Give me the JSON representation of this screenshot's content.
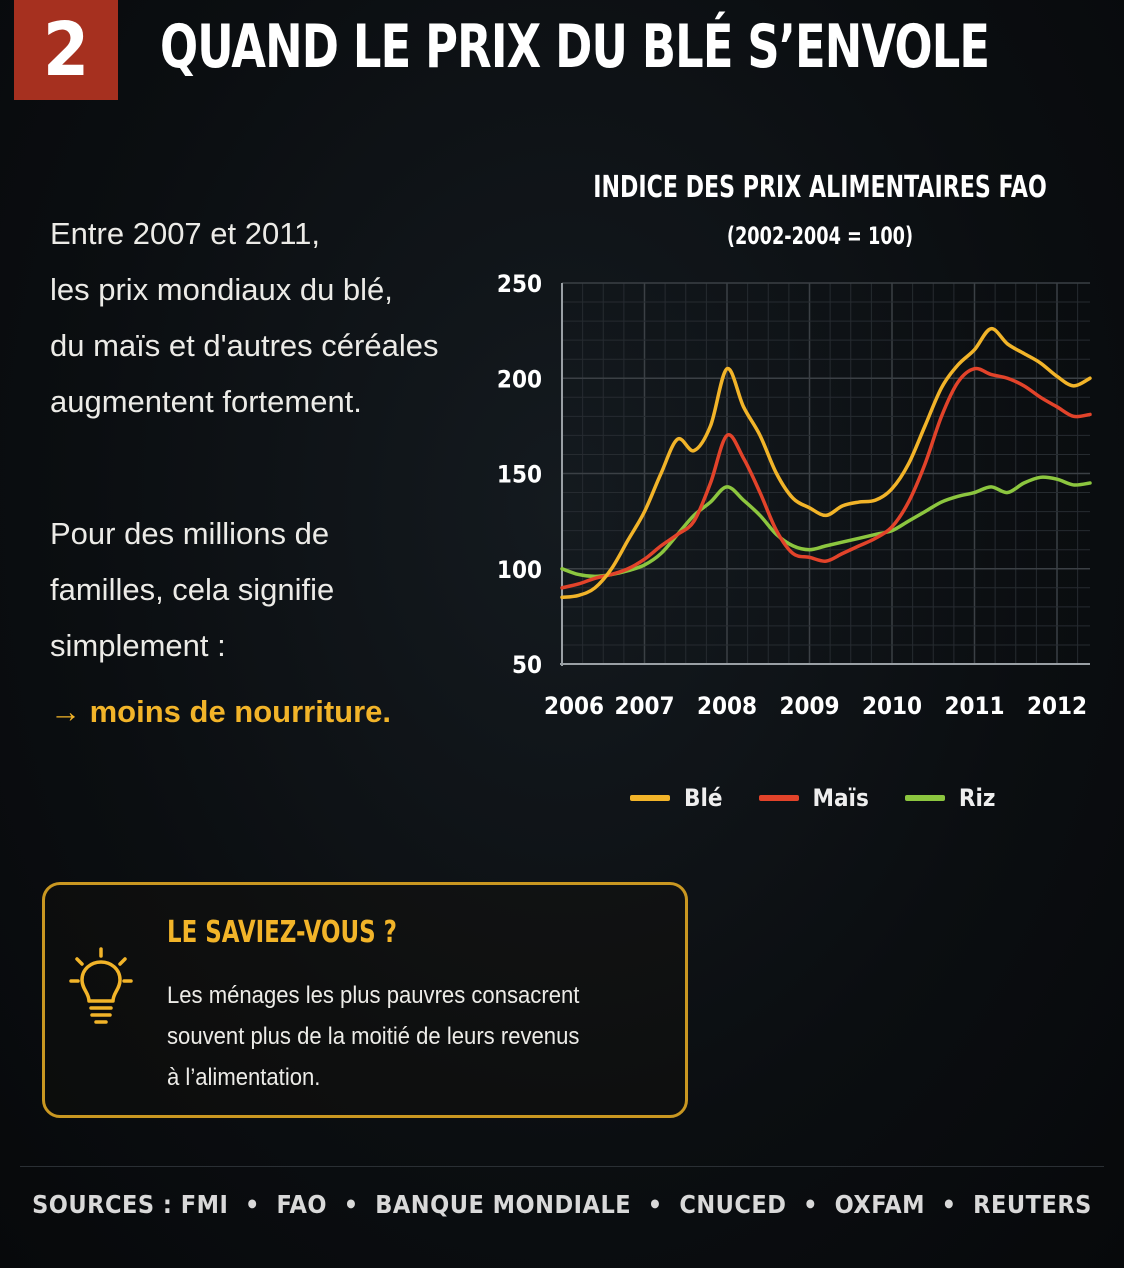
{
  "header": {
    "section_number": "2",
    "title": "QUAND LE PRIX DU BLÉ S’ENVOLE"
  },
  "intro": {
    "lines": [
      "Entre 2007 et 2011,",
      "les prix mondiaux du blé,",
      "du maïs et d'autres céréales",
      "augmentent fortement."
    ]
  },
  "consequence": {
    "lines": [
      "Pour des millions de",
      "familles, cela signifie",
      "simplement :"
    ],
    "highlight": "→ moins de nourriture."
  },
  "chart_data": {
    "type": "line",
    "title": "INDICE DES PRIX ALIMENTAIRES FAO",
    "subtitle": "(2002-2004 = 100)",
    "xlim": [
      2006,
      2012.4
    ],
    "ylim": [
      50,
      250
    ],
    "x_ticks": [
      "2006",
      "2007",
      "2008",
      "2009",
      "2010",
      "2011",
      "2012"
    ],
    "y_ticks": [
      "250",
      "200",
      "150",
      "100",
      "50"
    ],
    "grid": true,
    "legend_position": "bottom",
    "series": [
      {
        "name": "Blé",
        "color": "#f2b429",
        "x": [
          2006.0,
          2006.2,
          2006.4,
          2006.6,
          2006.8,
          2007.0,
          2007.2,
          2007.4,
          2007.6,
          2007.8,
          2008.0,
          2008.2,
          2008.4,
          2008.6,
          2008.8,
          2009.0,
          2009.2,
          2009.4,
          2009.6,
          2009.8,
          2010.0,
          2010.2,
          2010.4,
          2010.6,
          2010.8,
          2011.0,
          2011.2,
          2011.4,
          2011.6,
          2011.8,
          2012.0,
          2012.2,
          2012.4
        ],
        "values": [
          85,
          86,
          90,
          100,
          115,
          130,
          150,
          168,
          162,
          175,
          205,
          185,
          170,
          150,
          137,
          132,
          128,
          133,
          135,
          136,
          142,
          155,
          175,
          195,
          207,
          215,
          226,
          218,
          213,
          208,
          201,
          196,
          200
        ]
      },
      {
        "name": "Maïs",
        "color": "#e2432a",
        "x": [
          2006.0,
          2006.2,
          2006.4,
          2006.6,
          2006.8,
          2007.0,
          2007.2,
          2007.4,
          2007.6,
          2007.8,
          2008.0,
          2008.2,
          2008.4,
          2008.6,
          2008.8,
          2009.0,
          2009.2,
          2009.4,
          2009.6,
          2009.8,
          2010.0,
          2010.2,
          2010.4,
          2010.6,
          2010.8,
          2011.0,
          2011.2,
          2011.4,
          2011.6,
          2011.8,
          2012.0,
          2012.2,
          2012.4
        ],
        "values": [
          90,
          92,
          95,
          97,
          100,
          105,
          112,
          118,
          125,
          145,
          170,
          158,
          140,
          120,
          108,
          106,
          104,
          108,
          112,
          116,
          122,
          135,
          155,
          180,
          198,
          205,
          202,
          200,
          196,
          190,
          185,
          180,
          181
        ]
      },
      {
        "name": "Riz",
        "color": "#8cc63f",
        "x": [
          2006.0,
          2006.2,
          2006.4,
          2006.6,
          2006.8,
          2007.0,
          2007.2,
          2007.4,
          2007.6,
          2007.8,
          2008.0,
          2008.2,
          2008.4,
          2008.6,
          2008.8,
          2009.0,
          2009.2,
          2009.4,
          2009.6,
          2009.8,
          2010.0,
          2010.2,
          2010.4,
          2010.6,
          2010.8,
          2011.0,
          2011.2,
          2011.4,
          2011.6,
          2011.8,
          2012.0,
          2012.2,
          2012.4
        ],
        "values": [
          100,
          97,
          96,
          97,
          99,
          102,
          108,
          118,
          128,
          135,
          143,
          136,
          128,
          118,
          112,
          110,
          112,
          114,
          116,
          118,
          120,
          125,
          130,
          135,
          138,
          140,
          143,
          140,
          145,
          148,
          147,
          144,
          145
        ]
      }
    ]
  },
  "tip": {
    "icon": "lightbulb-icon",
    "title": "LE SAVIEZ-VOUS ?",
    "lines": [
      "Les ménages les plus pauvres consacrent",
      "souvent plus de la moitié de leurs revenus",
      "à l’alimentation."
    ]
  },
  "footer": {
    "sources": "SOURCES : FMI  •  FAO  •  BANQUE MONDIALE  •  CNUCED  •  OXFAM  •  REUTERS"
  },
  "colors": {
    "accent_red": "#a6301f",
    "accent_gold": "#f2b429",
    "background": "#0b0e11"
  }
}
